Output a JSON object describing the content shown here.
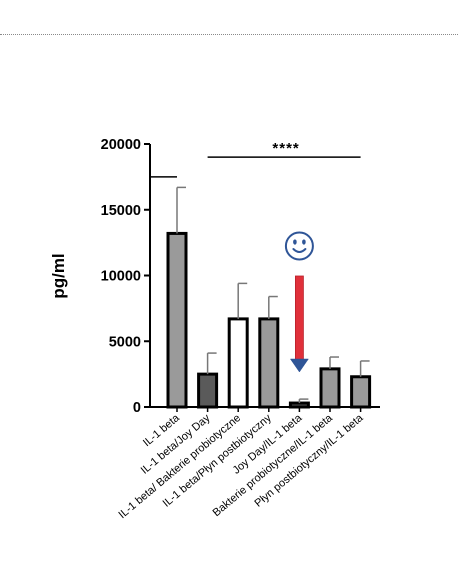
{
  "chart_data": {
    "type": "bar",
    "ylabel": "pg/ml",
    "xlabel": "",
    "ylim": [
      0,
      20000
    ],
    "yticks": [
      0,
      5000,
      10000,
      15000,
      20000
    ],
    "ytick_labels": [
      "0",
      "5000",
      "10000",
      "15000",
      "20000"
    ],
    "categories": [
      "IL-1 beta",
      "IL-1 beta/Joy Day",
      "IL-1 beta/ Bakterie probiotyczne",
      "IL-1 beta/Płyn postbiotyczny",
      "Joy Day/IL-1 beta",
      "Bakterie probiotyczne/IL-1 beta",
      "Płyn postbiotyczny/IL-1 beta"
    ],
    "values": [
      13200,
      2500,
      6700,
      6700,
      300,
      2900,
      2300
    ],
    "errors": [
      3500,
      1600,
      2700,
      1700,
      300,
      900,
      1200
    ],
    "bar_colors": [
      "#9a9a9a",
      "#5a5a5a",
      "#ffffff",
      "#9a9a9a",
      "#5a5a5a",
      "#9a9a9a",
      "#9a9a9a"
    ],
    "grid": false,
    "annotations": [
      {
        "text": "****",
        "spans": [
          "IL-1 beta/Joy Day",
          "Płyn postbiotyczny/IL-1 beta"
        ],
        "level": 19000
      },
      {
        "text": "",
        "spans": [
          "IL-1 beta",
          "IL-1 beta"
        ],
        "level": 17500
      }
    ],
    "marker": {
      "icon": "smiley-icon",
      "arrow_icon": "down-arrow-icon",
      "target": "Joy Day/IL-1 beta",
      "icon_color": "#2f5597",
      "arrow_color": "#e0303a"
    }
  }
}
